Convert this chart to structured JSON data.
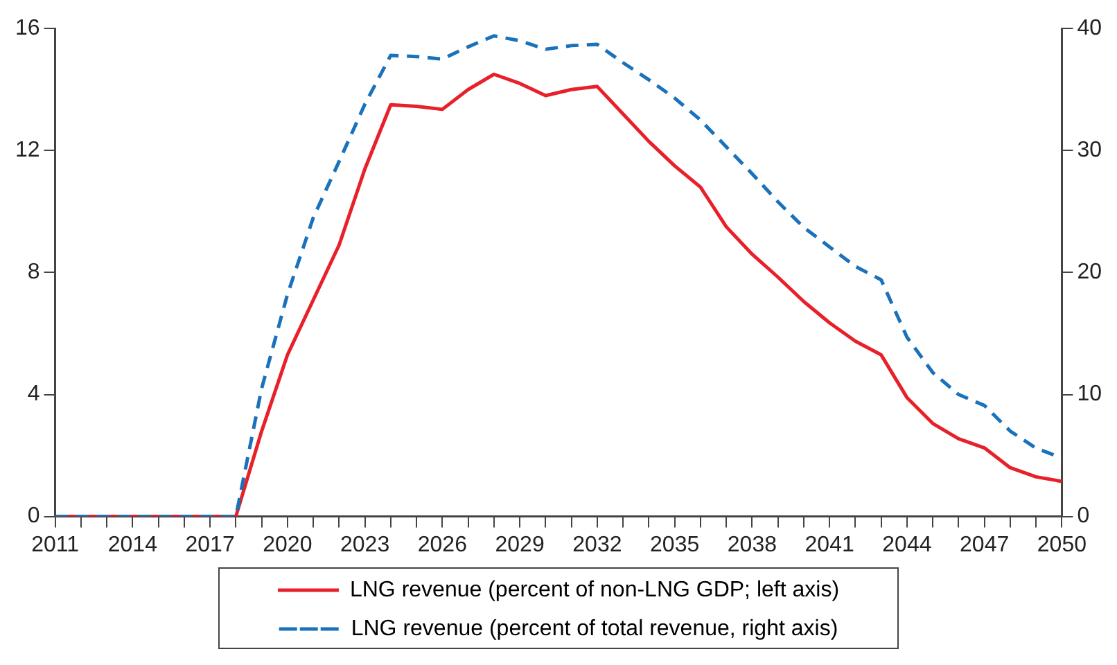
{
  "chart_data": {
    "type": "line",
    "x": [
      2011,
      2012,
      2013,
      2014,
      2015,
      2016,
      2017,
      2018,
      2019,
      2020,
      2021,
      2022,
      2023,
      2024,
      2025,
      2026,
      2027,
      2028,
      2029,
      2030,
      2031,
      2032,
      2033,
      2034,
      2035,
      2036,
      2037,
      2038,
      2039,
      2040,
      2041,
      2042,
      2043,
      2044,
      2045,
      2046,
      2047,
      2048,
      2049,
      2050
    ],
    "series": [
      {
        "name": "LNG revenue (percent of non-LNG GDP; left axis)",
        "color": "#e8202a",
        "line_style": "solid",
        "values": [
          0,
          0,
          0,
          0,
          0,
          0,
          0,
          0,
          2.8,
          5.3,
          7.1,
          8.9,
          11.4,
          13.5,
          13.45,
          13.35,
          14.0,
          14.5,
          14.2,
          13.8,
          14.0,
          14.1,
          13.2,
          12.3,
          11.5,
          10.8,
          9.5,
          8.6,
          7.85,
          7.05,
          6.35,
          5.75,
          5.3,
          3.9,
          3.05,
          2.55,
          2.25,
          1.6,
          1.3,
          1.15
        ]
      },
      {
        "name": "LNG revenue (percent of total revenue, right axis)",
        "color": "#1a72bb",
        "line_style": "dashed",
        "axis": "y2",
        "values": [
          0,
          0,
          0,
          0,
          0,
          0,
          0,
          0,
          10.5,
          18.2,
          24.5,
          29.1,
          33.8,
          37.8,
          37.7,
          37.5,
          38.5,
          39.4,
          39.0,
          38.3,
          38.6,
          38.7,
          37.2,
          35.8,
          34.3,
          32.5,
          30.3,
          28.1,
          25.8,
          23.7,
          22.1,
          20.5,
          19.4,
          14.7,
          11.8,
          10.0,
          9.1,
          7.0,
          5.6,
          4.8
        ]
      }
    ],
    "xlim": [
      2011,
      2050
    ],
    "xticks": [
      2011,
      {
        "value": 2012,
        "label": null
      },
      {
        "value": 2013,
        "label": null
      },
      2014,
      {
        "value": 2015,
        "label": null
      },
      {
        "value": 2016,
        "label": null
      },
      2017,
      {
        "value": 2018,
        "label": null
      },
      {
        "value": 2019,
        "label": null
      },
      2020,
      {
        "value": 2021,
        "label": null
      },
      {
        "value": 2022,
        "label": null
      },
      2023,
      {
        "value": 2024,
        "label": null
      },
      {
        "value": 2025,
        "label": null
      },
      2026,
      {
        "value": 2027,
        "label": null
      },
      {
        "value": 2028,
        "label": null
      },
      2029,
      {
        "value": 2030,
        "label": null
      },
      {
        "value": 2031,
        "label": null
      },
      2032,
      {
        "value": 2033,
        "label": null
      },
      {
        "value": 2034,
        "label": null
      },
      2035,
      {
        "value": 2036,
        "label": null
      },
      {
        "value": 2037,
        "label": null
      },
      2038,
      {
        "value": 2039,
        "label": null
      },
      {
        "value": 2040,
        "label": null
      },
      2041,
      {
        "value": 2042,
        "label": null
      },
      {
        "value": 2043,
        "label": null
      },
      2044,
      {
        "value": 2045,
        "label": null
      },
      {
        "value": 2046,
        "label": null
      },
      2047,
      {
        "value": 2048,
        "label": null
      },
      {
        "value": 2049,
        "label": null
      },
      2050
    ],
    "ylim": [
      0,
      16
    ],
    "yticks": [
      0,
      4,
      8,
      12,
      16
    ],
    "y2lim": [
      0,
      40
    ],
    "y2ticks": [
      0,
      10,
      20,
      30,
      40
    ],
    "grid": false,
    "legend": "bottom",
    "marker": "none"
  }
}
